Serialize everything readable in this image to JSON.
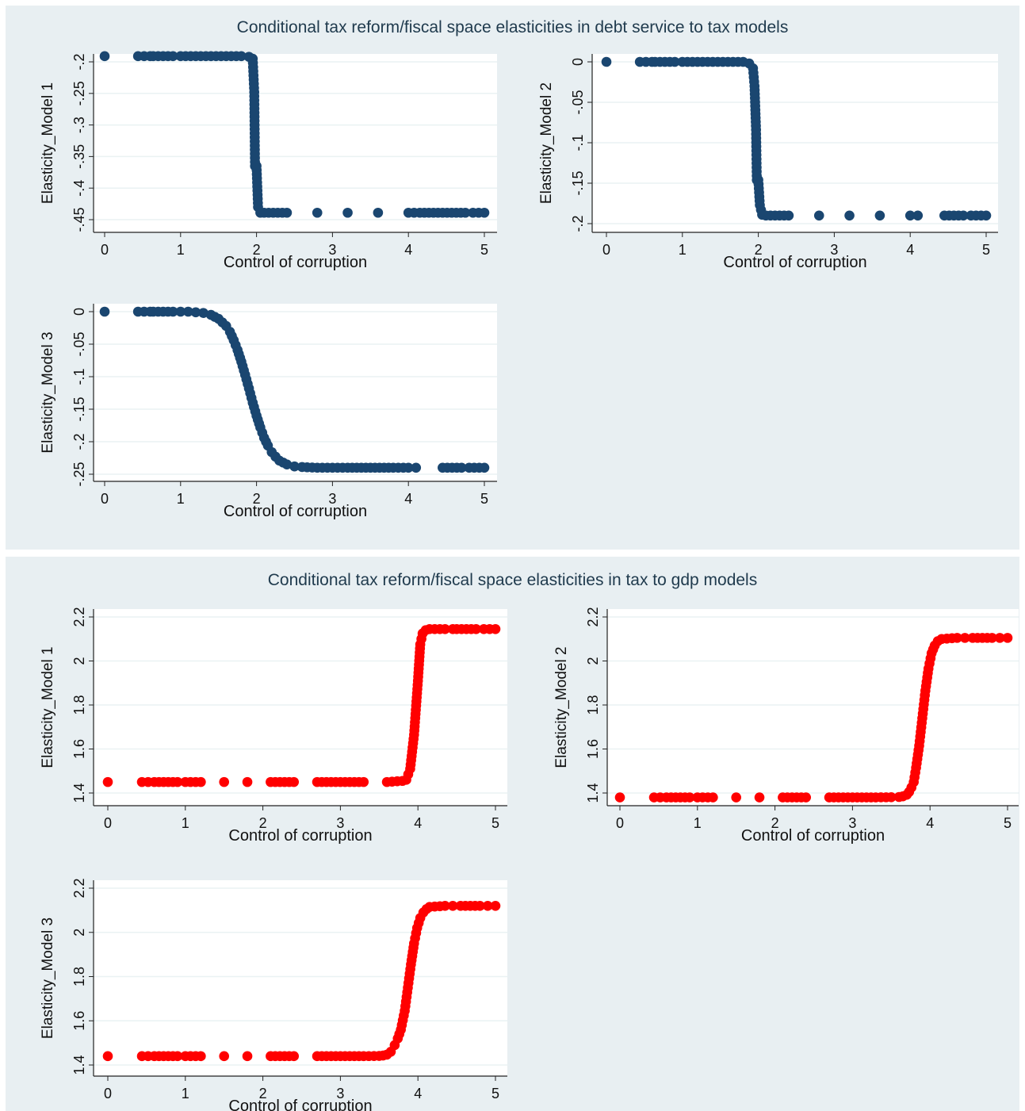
{
  "panels": [
    {
      "title": "Conditional tax reform/fiscal space elasticities in debt service to tax models"
    },
    {
      "title": "Conditional tax reform/fiscal space elasticities in  tax to gdp models"
    }
  ],
  "colors": {
    "debt_series": "#1a4670",
    "gdp_series": "#ff0000",
    "panel_bg": "#e8eff2",
    "plot_bg": "#ffffff",
    "grid": "#eaf2f3"
  },
  "chart_data": [
    {
      "type": "scatter",
      "panel": 0,
      "position": "top-left",
      "xlabel": "Control of corruption",
      "ylabel": "Elasticity_Model 1",
      "xlim": [
        0,
        5
      ],
      "ylim": [
        -0.45,
        -0.2
      ],
      "xticks": [
        "0",
        "1",
        "2",
        "3",
        "4",
        "5"
      ],
      "xtick_values": [
        0,
        1,
        2,
        3,
        4,
        5
      ],
      "yticks": [
        "-.45",
        "-.4",
        "-.35",
        "-.3",
        "-.25",
        "-.2"
      ],
      "ytick_values": [
        -0.45,
        -0.4,
        -0.35,
        -0.3,
        -0.25,
        -0.2
      ],
      "color": "#1a4670",
      "x": [
        0,
        0.44,
        0.52,
        0.6,
        0.64,
        0.9,
        1.0,
        1.2,
        1.4,
        1.6,
        1.8,
        1.9,
        1.95,
        1.97,
        1.98,
        2.0,
        2.02,
        2.05,
        2.1,
        2.4,
        2.8,
        3.2,
        3.6,
        4.0,
        4.15,
        4.45,
        4.75,
        4.85,
        5.0
      ],
      "y": [
        -0.191,
        -0.191,
        -0.191,
        -0.191,
        -0.191,
        -0.191,
        -0.191,
        -0.191,
        -0.191,
        -0.191,
        -0.191,
        -0.192,
        -0.195,
        -0.248,
        -0.365,
        -0.365,
        -0.43,
        -0.439,
        -0.439,
        -0.439,
        -0.439,
        -0.439,
        -0.439,
        -0.439,
        -0.439,
        -0.439,
        -0.439,
        -0.439,
        -0.439
      ]
    },
    {
      "type": "scatter",
      "panel": 0,
      "position": "top-right",
      "xlabel": "Control of corruption",
      "ylabel": "Elasticity_Model 2",
      "xlim": [
        0,
        5
      ],
      "ylim": [
        -0.2,
        0
      ],
      "xticks": [
        "0",
        "1",
        "2",
        "3",
        "4",
        "5"
      ],
      "xtick_values": [
        0,
        1,
        2,
        3,
        4,
        5
      ],
      "yticks": [
        "-.2",
        "-.15",
        "-.1",
        "-.05",
        "0"
      ],
      "ytick_values": [
        -0.2,
        -0.15,
        -0.1,
        -0.05,
        0
      ],
      "color": "#1a4670",
      "x": [
        0,
        0.44,
        0.52,
        0.6,
        0.64,
        0.9,
        1.0,
        1.2,
        1.4,
        1.6,
        1.8,
        1.88,
        1.93,
        1.95,
        1.97,
        1.98,
        2.0,
        2.02,
        2.05,
        2.1,
        2.4,
        2.8,
        3.2,
        3.6,
        4.0,
        4.1,
        4.45,
        4.7,
        4.8,
        5.0
      ],
      "y": [
        0,
        0,
        0,
        0,
        0,
        0,
        0,
        0,
        0,
        0,
        0,
        -0.002,
        -0.008,
        -0.03,
        -0.084,
        -0.146,
        -0.146,
        -0.177,
        -0.189,
        -0.19,
        -0.19,
        -0.19,
        -0.19,
        -0.19,
        -0.19,
        -0.19,
        -0.19,
        -0.19,
        -0.19,
        -0.19
      ]
    },
    {
      "type": "scatter",
      "panel": 0,
      "position": "bottom-left",
      "xlabel": "Control of corruption",
      "ylabel": "Elasticity_Model 3",
      "xlim": [
        0,
        5
      ],
      "ylim": [
        -0.25,
        0
      ],
      "xticks": [
        "0",
        "1",
        "2",
        "3",
        "4",
        "5"
      ],
      "xtick_values": [
        0,
        1,
        2,
        3,
        4,
        5
      ],
      "yticks": [
        "-.25",
        "-.2",
        "-.15",
        "-.1",
        "-.05",
        "0"
      ],
      "ytick_values": [
        -0.25,
        -0.2,
        -0.15,
        -0.1,
        -0.05,
        0
      ],
      "color": "#1a4670",
      "x": [
        0,
        0.44,
        0.52,
        0.6,
        0.64,
        0.9,
        1.0,
        1.1,
        1.2,
        1.3,
        1.4,
        1.5,
        1.6,
        1.65,
        1.7,
        1.75,
        1.8,
        1.85,
        1.9,
        1.95,
        2.0,
        2.05,
        2.1,
        2.15,
        2.2,
        2.25,
        2.3,
        2.4,
        2.5,
        2.6,
        2.8,
        3.0,
        3.2,
        3.5,
        3.8,
        4.0,
        4.1,
        4.45,
        4.7,
        4.8,
        5.0
      ],
      "y": [
        0,
        0,
        0,
        0,
        0,
        0,
        0,
        0,
        -0.001,
        -0.002,
        -0.005,
        -0.011,
        -0.022,
        -0.031,
        -0.044,
        -0.059,
        -0.077,
        -0.097,
        -0.118,
        -0.14,
        -0.16,
        -0.178,
        -0.194,
        -0.206,
        -0.216,
        -0.223,
        -0.229,
        -0.235,
        -0.238,
        -0.239,
        -0.24,
        -0.24,
        -0.24,
        -0.24,
        -0.24,
        -0.24,
        -0.24,
        -0.24,
        -0.24,
        -0.24,
        -0.24
      ]
    },
    {
      "type": "scatter",
      "panel": 1,
      "position": "top-left",
      "xlabel": "Control of corruption",
      "ylabel": "Elasticity_Model 1",
      "xlim": [
        0,
        5
      ],
      "ylim": [
        1.4,
        2.2
      ],
      "xticks": [
        "0",
        "1",
        "2",
        "3",
        "4",
        "5"
      ],
      "xtick_values": [
        0,
        1,
        2,
        3,
        4,
        5
      ],
      "yticks": [
        "1.4",
        "1.6",
        "1.8",
        "2",
        "2.2"
      ],
      "ytick_values": [
        1.4,
        1.6,
        1.8,
        2,
        2.2
      ],
      "color": "#ff0000",
      "x": [
        0,
        0.44,
        0.52,
        0.6,
        0.66,
        0.9,
        1.0,
        1.2,
        1.5,
        1.8,
        2.1,
        2.4,
        2.7,
        3.0,
        3.3,
        3.6,
        3.8,
        3.85,
        3.9,
        3.95,
        4.0,
        4.03,
        4.06,
        4.1,
        4.15,
        4.35,
        4.45,
        4.5,
        4.75,
        4.85,
        5.0
      ],
      "y": [
        1.45,
        1.45,
        1.45,
        1.45,
        1.45,
        1.45,
        1.45,
        1.45,
        1.45,
        1.45,
        1.45,
        1.45,
        1.45,
        1.45,
        1.45,
        1.45,
        1.455,
        1.46,
        1.51,
        1.665,
        1.91,
        2.075,
        2.125,
        2.14,
        2.145,
        2.145,
        2.145,
        2.145,
        2.145,
        2.145,
        2.145
      ]
    },
    {
      "type": "scatter",
      "panel": 1,
      "position": "top-right",
      "xlabel": "Control of corruption",
      "ylabel": "Elasticity_Model 2",
      "xlim": [
        0,
        5
      ],
      "ylim": [
        1.4,
        2.2
      ],
      "xticks": [
        "0",
        "1",
        "2",
        "3",
        "4",
        "5"
      ],
      "xtick_values": [
        0,
        1,
        2,
        3,
        4,
        5
      ],
      "yticks": [
        "1.4",
        "1.6",
        "1.8",
        "2",
        "2.2"
      ],
      "ytick_values": [
        1.4,
        1.6,
        1.8,
        2,
        2.2
      ],
      "color": "#ff0000",
      "x": [
        0,
        0.44,
        0.52,
        0.6,
        0.66,
        0.9,
        1.0,
        1.2,
        1.5,
        1.8,
        2.1,
        2.4,
        2.7,
        3.0,
        3.3,
        3.5,
        3.6,
        3.65,
        3.7,
        3.73,
        3.76,
        3.79,
        3.82,
        3.86,
        3.9,
        3.94,
        3.98,
        4.02,
        4.06,
        4.1,
        4.15,
        4.35,
        4.45,
        4.55,
        4.8,
        4.9,
        5.0
      ],
      "y": [
        1.38,
        1.38,
        1.38,
        1.38,
        1.38,
        1.38,
        1.38,
        1.38,
        1.38,
        1.38,
        1.38,
        1.38,
        1.38,
        1.38,
        1.38,
        1.381,
        1.382,
        1.385,
        1.392,
        1.405,
        1.425,
        1.45,
        1.515,
        1.615,
        1.74,
        1.865,
        1.965,
        2.035,
        2.07,
        2.09,
        2.1,
        2.105,
        2.105,
        2.105,
        2.105,
        2.105,
        2.105
      ]
    },
    {
      "type": "scatter",
      "panel": 1,
      "position": "bottom-left",
      "xlabel": "Control of corruption",
      "ylabel": "Elasticity_Model 3",
      "xlim": [
        0,
        5
      ],
      "ylim": [
        1.4,
        2.2
      ],
      "xticks": [
        "0",
        "1",
        "2",
        "3",
        "4",
        "5"
      ],
      "xtick_values": [
        0,
        1,
        2,
        3,
        4,
        5
      ],
      "yticks": [
        "1.4",
        "1.6",
        "1.8",
        "2",
        "2.2"
      ],
      "ytick_values": [
        1.4,
        1.6,
        1.8,
        2,
        2.2
      ],
      "color": "#ff0000",
      "x": [
        0,
        0.44,
        0.52,
        0.6,
        0.66,
        0.9,
        1.0,
        1.2,
        1.5,
        1.8,
        2.1,
        2.4,
        2.7,
        3.0,
        3.3,
        3.5,
        3.55,
        3.6,
        3.65,
        3.7,
        3.74,
        3.78,
        3.83,
        3.87,
        3.91,
        3.95,
        3.99,
        4.03,
        4.07,
        4.11,
        4.15,
        4.35,
        4.45,
        4.55,
        4.8,
        4.9,
        5.0
      ],
      "y": [
        1.44,
        1.44,
        1.44,
        1.44,
        1.44,
        1.44,
        1.44,
        1.44,
        1.44,
        1.44,
        1.44,
        1.44,
        1.44,
        1.44,
        1.44,
        1.441,
        1.443,
        1.447,
        1.46,
        1.49,
        1.52,
        1.56,
        1.645,
        1.75,
        1.855,
        1.95,
        2.02,
        2.065,
        2.09,
        2.105,
        2.115,
        2.12,
        2.12,
        2.12,
        2.12,
        2.12,
        2.12
      ]
    }
  ]
}
